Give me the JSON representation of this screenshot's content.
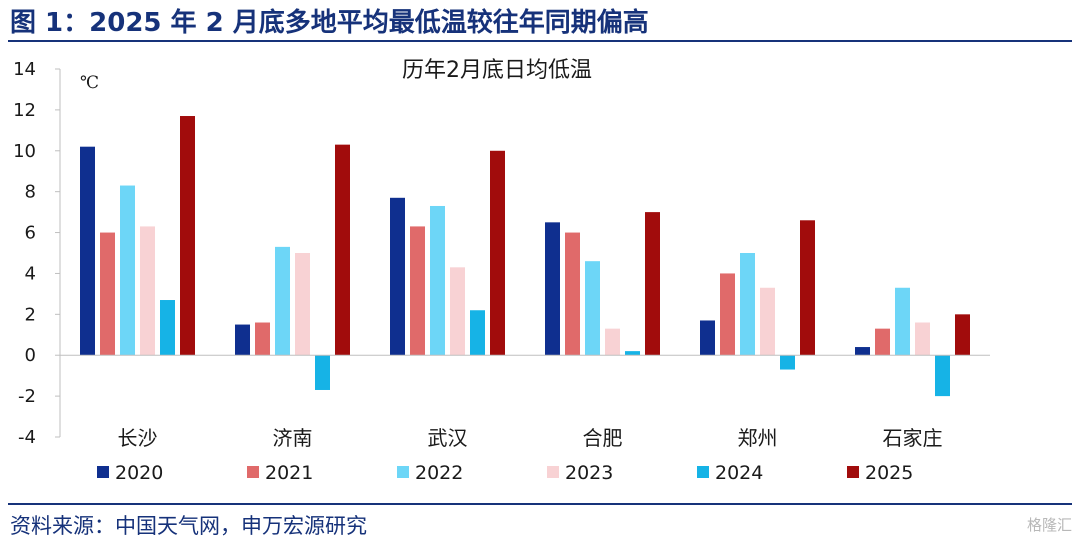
{
  "header": {
    "figure_title": "图 1：2025 年 2 月底多地平均最低温较往年同期偏高"
  },
  "footer": {
    "source": "资料来源：中国天气网，申万宏源研究",
    "watermark": "格隆汇"
  },
  "chart_data": {
    "type": "bar",
    "title": "历年2月底日均低温",
    "unit_label": "℃",
    "categories": [
      "长沙",
      "济南",
      "武汉",
      "合肥",
      "郑州",
      "石家庄"
    ],
    "ylim": [
      -4,
      14
    ],
    "yticks": [
      -4,
      -2,
      0,
      2,
      4,
      6,
      8,
      10,
      12,
      14
    ],
    "legend_position": "bottom",
    "grid": false,
    "series": [
      {
        "name": "2020",
        "color": "#0f2f8f",
        "values": [
          10.2,
          1.5,
          7.7,
          6.5,
          1.7,
          0.4
        ]
      },
      {
        "name": "2021",
        "color": "#e06a6a",
        "values": [
          6.0,
          1.6,
          6.3,
          6.0,
          4.0,
          1.3
        ]
      },
      {
        "name": "2022",
        "color": "#6dd6f7",
        "values": [
          8.3,
          5.3,
          7.3,
          4.6,
          5.0,
          3.3
        ]
      },
      {
        "name": "2023",
        "color": "#f8d2d4",
        "values": [
          6.3,
          5.0,
          4.3,
          1.3,
          3.3,
          1.6
        ]
      },
      {
        "name": "2024",
        "color": "#16b3e6",
        "values": [
          2.7,
          -1.7,
          2.2,
          0.2,
          -0.7,
          -2.0
        ]
      },
      {
        "name": "2025",
        "color": "#a10c0c",
        "values": [
          11.7,
          10.3,
          10.0,
          7.0,
          6.6,
          2.0
        ]
      }
    ]
  }
}
